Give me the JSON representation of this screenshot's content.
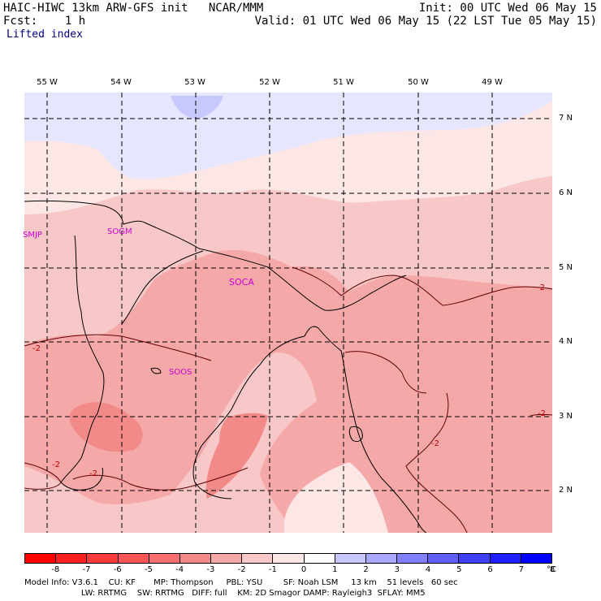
{
  "header": {
    "line1_left": "HAIC-HIWC 13km ARW-GFS init   NCAR/MMM",
    "line1_right": "Init: 00 UTC Wed 06 May 15",
    "line2_left": "Fcst:    1 h",
    "line2_right": "Valid: 01 UTC Wed 06 May 15 (22 LST Tue 05 May 15)",
    "line3": "Lifted index"
  },
  "lon_labels": [
    "55 W",
    "54 W",
    "53 W",
    "52 W",
    "51 W",
    "50 W",
    "49 W"
  ],
  "lat_labels": [
    "7 N",
    "6 N",
    "5 N",
    "4 N",
    "3 N",
    "2 N"
  ],
  "stations": [
    "SMJP",
    "SOGM",
    "SOCA",
    "SOOS"
  ],
  "contour_labels": [
    "-2",
    "-2",
    "-2",
    "-2",
    "-2",
    "-2"
  ],
  "colorbar": {
    "labels": [
      "-8",
      "-7",
      "-6",
      "-5",
      "-4",
      "-3",
      "-2",
      "-1",
      "0",
      "1",
      "2",
      "3",
      "4",
      "5",
      "6",
      "7",
      "8"
    ],
    "unit": "°C",
    "colors": [
      "#ff0000",
      "#ff2020",
      "#ff3b3b",
      "#ff5555",
      "#f87070",
      "#f38a8a",
      "#f5a8a8",
      "#f8c8c8",
      "#fde6e6",
      "#ffffff",
      "#c8c8ff",
      "#a8a8ff",
      "#8080ff",
      "#6060ff",
      "#4040ff",
      "#2020ff",
      "#0000ff"
    ]
  },
  "footer": {
    "line1": "Model Info: V3.6.1    CU: KF       MP: Thompson     PBL: YSU        SF: Noah LSM     13 km    51 levels   60 sec",
    "line2": "                      LW: RRTMG    SW: RRTMG   DIFF: full    KM: 2D Smagor DAMP: Rayleigh3  SFLAY: MM5"
  }
}
